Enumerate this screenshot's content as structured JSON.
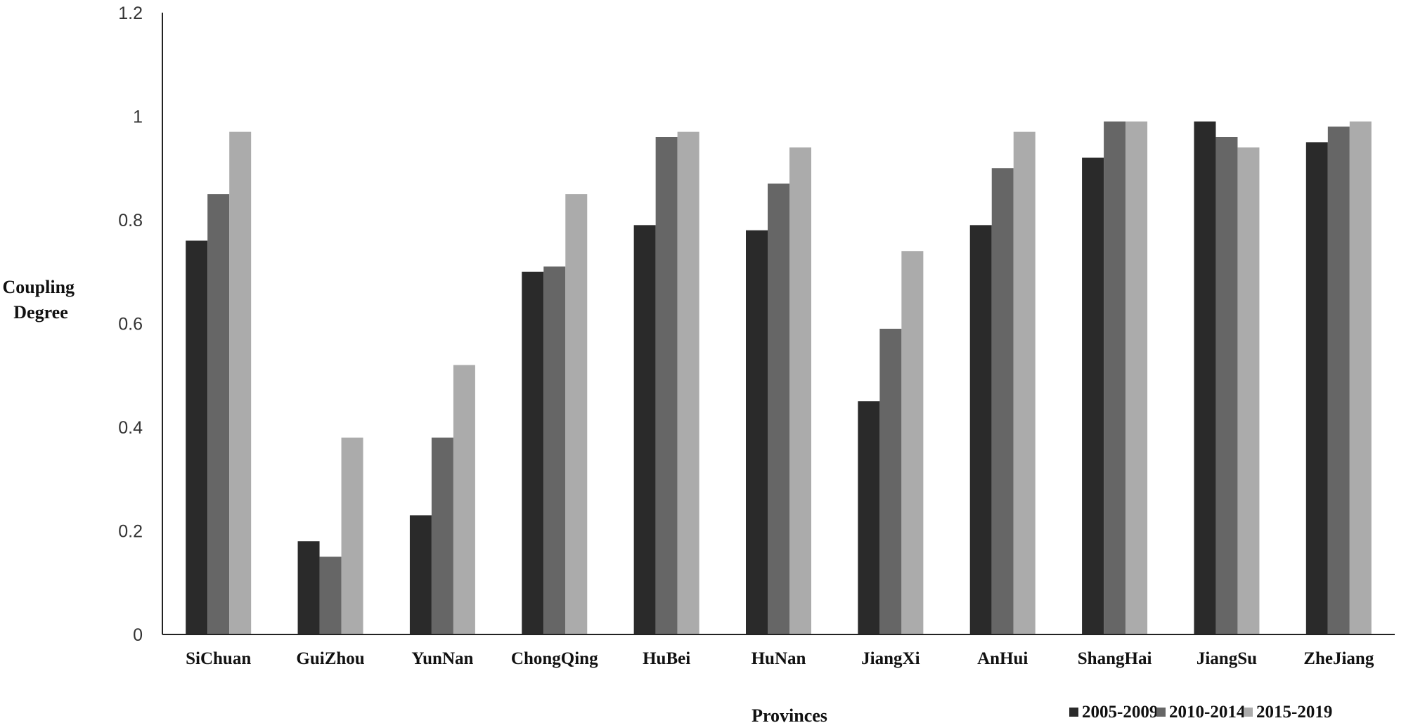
{
  "chart_data": {
    "type": "bar",
    "title": "",
    "xlabel": "Provinces",
    "ylabel_lines": [
      "Coupling",
      "Degree"
    ],
    "categories": [
      "SiChuan",
      "GuiZhou",
      "YunNan",
      "ChongQing",
      "HuBei",
      "HuNan",
      "JiangXi",
      "AnHui",
      "ShangHai",
      "JiangSu",
      "ZheJiang"
    ],
    "series": [
      {
        "name": "2005-2009",
        "color": "#2a2a2a",
        "values": [
          0.76,
          0.18,
          0.23,
          0.7,
          0.79,
          0.78,
          0.45,
          0.79,
          0.92,
          0.99,
          0.95
        ]
      },
      {
        "name": "2010-2014",
        "color": "#666666",
        "values": [
          0.85,
          0.15,
          0.38,
          0.71,
          0.96,
          0.87,
          0.59,
          0.9,
          0.99,
          0.96,
          0.98
        ]
      },
      {
        "name": "2015-2019",
        "color": "#ababab",
        "values": [
          0.97,
          0.38,
          0.52,
          0.85,
          0.97,
          0.94,
          0.74,
          0.97,
          0.99,
          0.94,
          0.99
        ]
      }
    ],
    "ylim": [
      0,
      1.2
    ],
    "yticks": [
      0,
      0.2,
      0.4,
      0.6,
      0.8,
      1,
      1.2
    ],
    "ytick_labels": [
      "0",
      "0.2",
      "0.4",
      "0.6",
      "0.8",
      "1",
      "1.2"
    ],
    "grid": false,
    "legend_position": "bottom-right"
  }
}
